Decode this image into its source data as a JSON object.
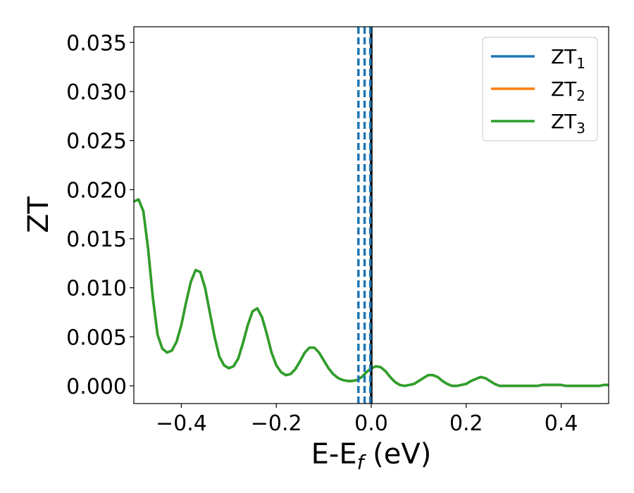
{
  "chart_data": {
    "type": "line",
    "xlabel": "E-E",
    "xlabel_sub": "f",
    "xlabel_unit": " (eV)",
    "ylabel": "ZT",
    "xlim": [
      -0.5,
      0.5
    ],
    "ylim": [
      -0.0018,
      0.0366
    ],
    "xticks": [
      -0.4,
      -0.2,
      0.0,
      0.2,
      0.4
    ],
    "xtick_labels": [
      "−0.4",
      "−0.2",
      "0.0",
      "0.2",
      "0.4"
    ],
    "yticks": [
      0.0,
      0.005,
      0.01,
      0.015,
      0.02,
      0.025,
      0.03,
      0.035
    ],
    "ytick_labels": [
      "0.000",
      "0.005",
      "0.010",
      "0.015",
      "0.020",
      "0.025",
      "0.030",
      "0.035"
    ],
    "grid": false,
    "legend_position": "top-right",
    "vlines": [
      {
        "x": 0.0,
        "color": "#000000",
        "style": "solid"
      },
      {
        "x": -0.027,
        "color": "#1f77b4",
        "style": "dashed"
      },
      {
        "x": -0.014,
        "color": "#1f77b4",
        "style": "dashed"
      },
      {
        "x": -0.002,
        "color": "#1f77b4",
        "style": "dashed"
      }
    ],
    "x": [
      -0.5,
      -0.49,
      -0.48,
      -0.47,
      -0.46,
      -0.45,
      -0.44,
      -0.43,
      -0.42,
      -0.41,
      -0.4,
      -0.39,
      -0.38,
      -0.37,
      -0.36,
      -0.35,
      -0.34,
      -0.33,
      -0.32,
      -0.31,
      -0.3,
      -0.29,
      -0.28,
      -0.27,
      -0.26,
      -0.25,
      -0.24,
      -0.23,
      -0.22,
      -0.21,
      -0.2,
      -0.19,
      -0.18,
      -0.17,
      -0.16,
      -0.15,
      -0.14,
      -0.13,
      -0.12,
      -0.11,
      -0.1,
      -0.09,
      -0.08,
      -0.07,
      -0.06,
      -0.05,
      -0.04,
      -0.03,
      -0.02,
      -0.01,
      0.0,
      0.01,
      0.02,
      0.03,
      0.04,
      0.05,
      0.06,
      0.07,
      0.08,
      0.09,
      0.1,
      0.11,
      0.12,
      0.13,
      0.14,
      0.15,
      0.16,
      0.17,
      0.18,
      0.19,
      0.2,
      0.21,
      0.22,
      0.23,
      0.24,
      0.25,
      0.26,
      0.27,
      0.28,
      0.29,
      0.3,
      0.31,
      0.32,
      0.33,
      0.34,
      0.35,
      0.36,
      0.37,
      0.38,
      0.39,
      0.4,
      0.41,
      0.42,
      0.43,
      0.44,
      0.45,
      0.46,
      0.47,
      0.48,
      0.49,
      0.5
    ],
    "series": [
      {
        "name": "ZT",
        "name_sub": "1",
        "color": "#1f77b4",
        "values": [
          0.0188,
          0.019,
          0.0178,
          0.014,
          0.009,
          0.0052,
          0.0038,
          0.0034,
          0.0036,
          0.0045,
          0.0062,
          0.0085,
          0.0106,
          0.0118,
          0.0116,
          0.01,
          0.0075,
          0.005,
          0.003,
          0.0021,
          0.0018,
          0.002,
          0.0028,
          0.0044,
          0.0062,
          0.0076,
          0.0079,
          0.007,
          0.0053,
          0.0034,
          0.0021,
          0.0014,
          0.0011,
          0.0012,
          0.0017,
          0.0025,
          0.0034,
          0.0039,
          0.0039,
          0.0034,
          0.0026,
          0.0018,
          0.0012,
          0.0008,
          0.0006,
          0.0005,
          0.0005,
          0.0006,
          0.0009,
          0.0014,
          0.0018,
          0.002,
          0.0019,
          0.0015,
          0.0009,
          0.0004,
          0.0001,
          0.0,
          0.0001,
          0.0002,
          0.0005,
          0.0008,
          0.0011,
          0.0011,
          0.0009,
          0.0005,
          0.0002,
          0.0,
          0.0,
          0.0001,
          0.0002,
          0.0005,
          0.0007,
          0.0009,
          0.0008,
          0.0005,
          0.0002,
          0.0,
          0.0,
          0.0,
          0.0,
          0.0,
          0.0,
          0.0,
          0.0,
          0.0,
          0.0001,
          0.0001,
          0.0001,
          0.0001,
          0.0001,
          0.0,
          0.0,
          0.0,
          0.0,
          0.0,
          0.0,
          0.0,
          0.0,
          0.0001,
          0.0001
        ]
      },
      {
        "name": "ZT",
        "name_sub": "2",
        "color": "#ff7f0e",
        "values": [
          0.0188,
          0.019,
          0.0178,
          0.014,
          0.009,
          0.0052,
          0.0038,
          0.0034,
          0.0036,
          0.0045,
          0.0062,
          0.0085,
          0.0106,
          0.0118,
          0.0116,
          0.01,
          0.0075,
          0.005,
          0.003,
          0.0021,
          0.0018,
          0.002,
          0.0028,
          0.0044,
          0.0062,
          0.0076,
          0.0079,
          0.007,
          0.0053,
          0.0034,
          0.0021,
          0.0014,
          0.0011,
          0.0012,
          0.0017,
          0.0025,
          0.0034,
          0.0039,
          0.0039,
          0.0034,
          0.0026,
          0.0018,
          0.0012,
          0.0008,
          0.0006,
          0.0005,
          0.0005,
          0.0006,
          0.0009,
          0.0014,
          0.0018,
          0.002,
          0.0019,
          0.0015,
          0.0009,
          0.0004,
          0.0001,
          0.0,
          0.0001,
          0.0002,
          0.0005,
          0.0008,
          0.0011,
          0.0011,
          0.0009,
          0.0005,
          0.0002,
          0.0,
          0.0,
          0.0001,
          0.0002,
          0.0005,
          0.0007,
          0.0009,
          0.0008,
          0.0005,
          0.0002,
          0.0,
          0.0,
          0.0,
          0.0,
          0.0,
          0.0,
          0.0,
          0.0,
          0.0,
          0.0001,
          0.0001,
          0.0001,
          0.0001,
          0.0001,
          0.0,
          0.0,
          0.0,
          0.0,
          0.0,
          0.0,
          0.0,
          0.0,
          0.0001,
          0.0001
        ]
      },
      {
        "name": "ZT",
        "name_sub": "3",
        "color": "#2ca02c",
        "values": [
          0.0188,
          0.019,
          0.0178,
          0.014,
          0.009,
          0.0052,
          0.0038,
          0.0034,
          0.0036,
          0.0045,
          0.0062,
          0.0085,
          0.0106,
          0.0118,
          0.0116,
          0.01,
          0.0075,
          0.005,
          0.003,
          0.0021,
          0.0018,
          0.002,
          0.0028,
          0.0044,
          0.0062,
          0.0076,
          0.0079,
          0.007,
          0.0053,
          0.0034,
          0.0021,
          0.0014,
          0.0011,
          0.0012,
          0.0017,
          0.0025,
          0.0034,
          0.0039,
          0.0039,
          0.0034,
          0.0026,
          0.0018,
          0.0012,
          0.0008,
          0.0006,
          0.0005,
          0.0005,
          0.0006,
          0.0009,
          0.0014,
          0.0018,
          0.002,
          0.0019,
          0.0015,
          0.0009,
          0.0004,
          0.0001,
          0.0,
          0.0001,
          0.0002,
          0.0005,
          0.0008,
          0.0011,
          0.0011,
          0.0009,
          0.0005,
          0.0002,
          0.0,
          0.0,
          0.0001,
          0.0002,
          0.0005,
          0.0007,
          0.0009,
          0.0008,
          0.0005,
          0.0002,
          0.0,
          0.0,
          0.0,
          0.0,
          0.0,
          0.0,
          0.0,
          0.0,
          0.0,
          0.0001,
          0.0001,
          0.0001,
          0.0001,
          0.0001,
          0.0,
          0.0,
          0.0,
          0.0,
          0.0,
          0.0,
          0.0,
          0.0,
          0.0001,
          0.0001
        ]
      }
    ]
  }
}
